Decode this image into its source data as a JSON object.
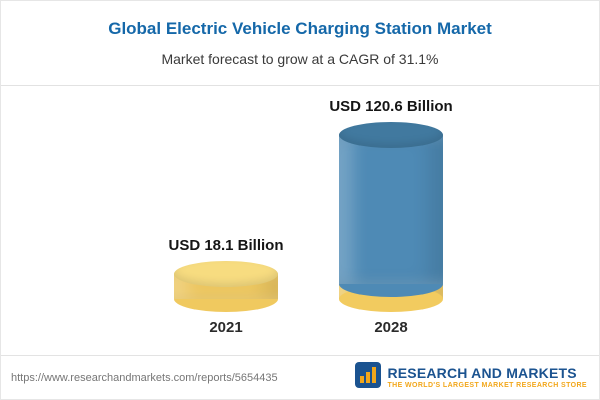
{
  "header": {
    "title": "Global Electric Vehicle Charging Station Market",
    "subtitle": "Market forecast to grow at a CAGR of 31.1%"
  },
  "chart_data": {
    "type": "bar",
    "title": "Global Electric Vehicle Charging Station Market",
    "subtitle": "Market forecast to grow at a CAGR of 31.1%",
    "unit": "USD Billion",
    "cagr": "31.1%",
    "categories": [
      "2021",
      "2028"
    ],
    "values": [
      18.1,
      120.6
    ],
    "bars": [
      {
        "year": "2021",
        "label": "USD 18.1 Billion",
        "value": 18.1,
        "color": "#f0c95f",
        "top_color": "#f7dc80"
      },
      {
        "year": "2028",
        "label": "USD 120.6 Billion",
        "value": 120.6,
        "color": "#4e8ab5",
        "top_color": "#41799f",
        "base_color": "#f2cb5f"
      }
    ],
    "legend": null,
    "grid": false
  },
  "footer": {
    "url": "https://www.researchandmarkets.com/reports/5654435",
    "brand_name": "RESEARCH AND MARKETS",
    "brand_tagline": "THE WORLD'S LARGEST MARKET RESEARCH STORE",
    "brand_color": "#1b5390",
    "accent_color": "#f2a71b"
  }
}
